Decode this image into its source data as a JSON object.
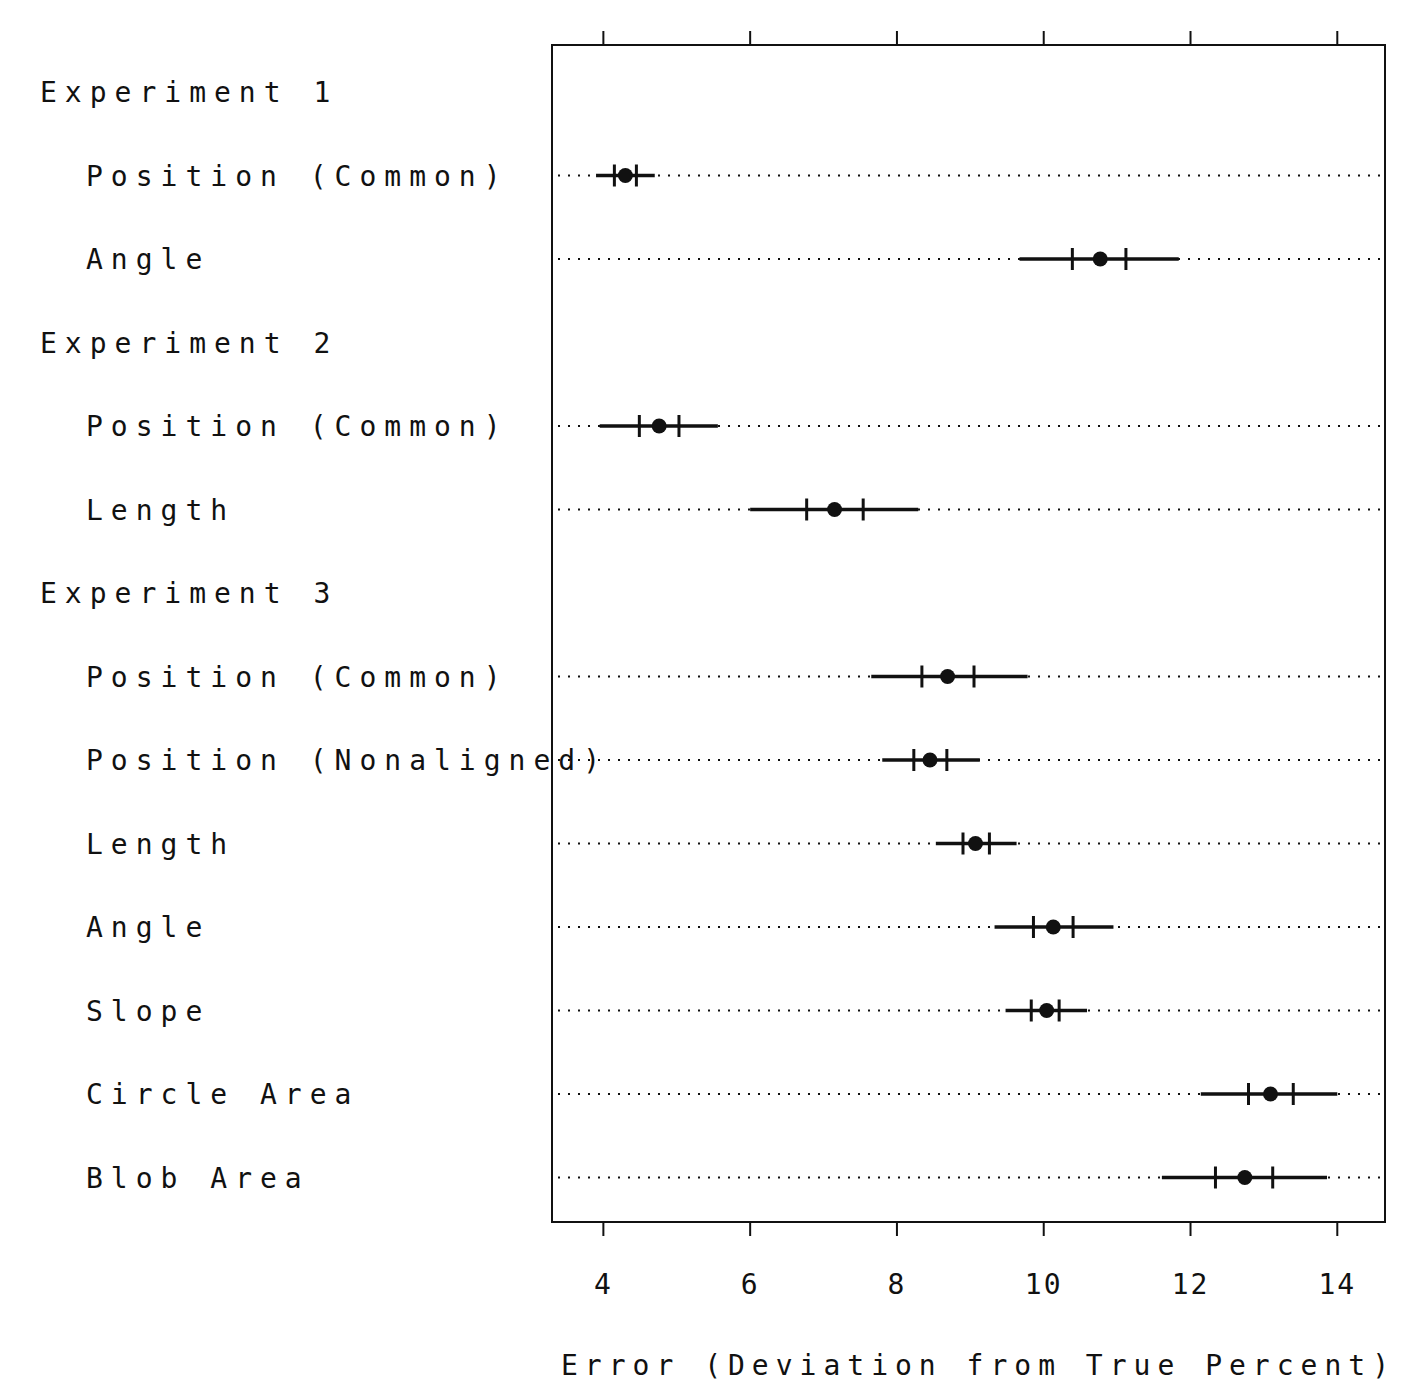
{
  "chart_data": {
    "type": "dot",
    "x_label": "Error (Deviation from True Percent)",
    "xlim": [
      3.3,
      14.65
    ],
    "xticks": [
      4,
      6,
      8,
      10,
      12,
      14
    ],
    "grid": true,
    "groups": [
      {
        "name": "Experiment 1",
        "items": [
          {
            "label": "Position (Common)",
            "value": 4.3,
            "inner": [
              4.15,
              4.45
            ],
            "outer": [
              3.9,
              4.7
            ]
          },
          {
            "label": "Angle",
            "value": 10.77,
            "inner": [
              10.39,
              11.12
            ],
            "outer": [
              9.67,
              11.84
            ]
          }
        ]
      },
      {
        "name": "Experiment 2",
        "items": [
          {
            "label": "Position (Common)",
            "value": 4.76,
            "inner": [
              4.49,
              5.03
            ],
            "outer": [
              3.95,
              5.56
            ]
          },
          {
            "label": "Length",
            "value": 7.15,
            "inner": [
              6.77,
              7.54
            ],
            "outer": [
              6.0,
              8.29
            ]
          }
        ]
      },
      {
        "name": "Experiment 3",
        "items": [
          {
            "label": "Position (Common)",
            "value": 8.69,
            "inner": [
              8.34,
              9.05
            ],
            "outer": [
              7.65,
              9.78
            ]
          },
          {
            "label": "Position (Nonaligned)",
            "value": 8.45,
            "inner": [
              8.23,
              8.68
            ],
            "outer": [
              7.8,
              9.13
            ]
          },
          {
            "label": "Length",
            "value": 9.07,
            "inner": [
              8.9,
              9.26
            ],
            "outer": [
              8.53,
              9.63
            ]
          },
          {
            "label": "Angle",
            "value": 10.13,
            "inner": [
              9.86,
              10.4
            ],
            "outer": [
              9.33,
              10.95
            ]
          },
          {
            "label": "Slope",
            "value": 10.04,
            "inner": [
              9.83,
              10.21
            ],
            "outer": [
              9.48,
              10.59
            ]
          },
          {
            "label": "Circle Area",
            "value": 13.09,
            "inner": [
              12.79,
              13.4
            ],
            "outer": [
              12.14,
              14.0
            ]
          },
          {
            "label": "Blob Area",
            "value": 12.74,
            "inner": [
              12.34,
              13.12
            ],
            "outer": [
              11.61,
              13.86
            ]
          }
        ]
      }
    ]
  }
}
